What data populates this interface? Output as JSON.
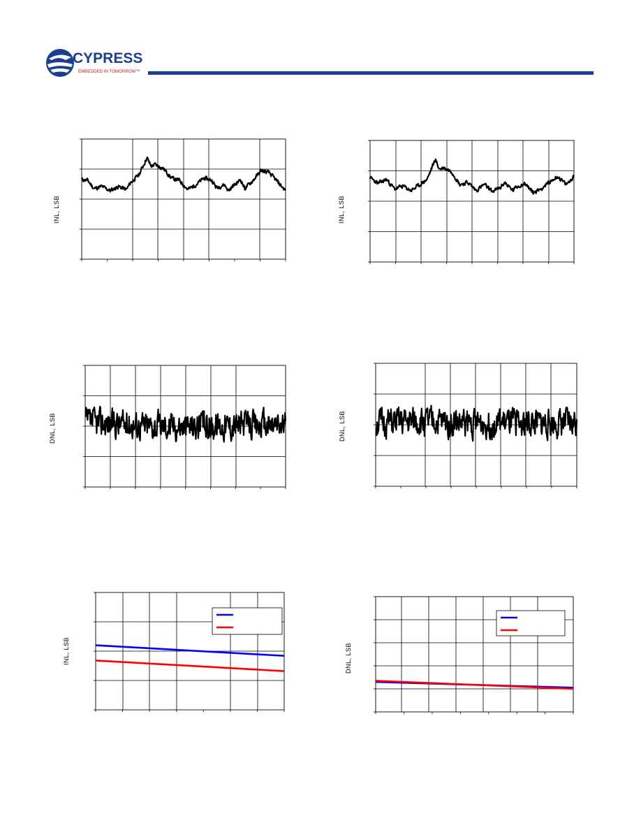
{
  "header": {
    "logo_text": "CYPRESS",
    "logo_tagline": "EMBEDDED IN TOMORROW™",
    "brand_color": "#1b3f8f"
  },
  "colors": {
    "trace": "#000000",
    "blue_series": "#0000ff",
    "red_series": "#ff0000",
    "grid": "#000000"
  },
  "chart_data": [
    {
      "type": "line",
      "position": "top-left",
      "ylabel": "INL, LSB",
      "xlabel": "",
      "title": "",
      "grid": true,
      "legend": null,
      "noise": {
        "seed": 11,
        "amp": 0.06
      },
      "series": [
        {
          "x": [
            0,
            0.03,
            0.06,
            0.1,
            0.14,
            0.18,
            0.22,
            0.24,
            0.28,
            0.32,
            0.34,
            0.36,
            0.4,
            0.44,
            0.48,
            0.52,
            0.56,
            0.6,
            0.64,
            0.66,
            0.7,
            0.72,
            0.74,
            0.78,
            0.8,
            0.84,
            0.88,
            0.92,
            0.96,
            1.0
          ],
          "y": [
            0.65,
            0.62,
            0.35,
            0.42,
            0.28,
            0.42,
            0.32,
            0.55,
            0.8,
            1.38,
            1.1,
            1.15,
            1.02,
            0.7,
            0.62,
            0.32,
            0.48,
            0.7,
            0.62,
            0.38,
            0.48,
            0.28,
            0.42,
            0.65,
            0.35,
            0.62,
            0.95,
            0.88,
            0.58,
            0.28
          ]
        }
      ]
    },
    {
      "type": "line",
      "position": "top-right",
      "ylabel": "INL, LSB",
      "xlabel": "",
      "title": "",
      "grid": true,
      "legend": null,
      "noise": {
        "seed": 23,
        "amp": 0.06
      },
      "series": [
        {
          "x": [
            0,
            0.04,
            0.08,
            0.12,
            0.16,
            0.2,
            0.24,
            0.28,
            0.32,
            0.34,
            0.36,
            0.4,
            0.44,
            0.48,
            0.52,
            0.56,
            0.6,
            0.64,
            0.66,
            0.7,
            0.72,
            0.76,
            0.8,
            0.84,
            0.88,
            0.92,
            0.96,
            0.98,
            1.0
          ],
          "y": [
            0.78,
            0.58,
            0.72,
            0.4,
            0.5,
            0.35,
            0.52,
            0.72,
            1.38,
            1.05,
            1.1,
            0.98,
            0.55,
            0.62,
            0.35,
            0.55,
            0.32,
            0.45,
            0.62,
            0.35,
            0.48,
            0.58,
            0.28,
            0.42,
            0.62,
            0.82,
            0.55,
            0.65,
            0.85
          ]
        }
      ]
    },
    {
      "type": "line",
      "position": "middle-left",
      "ylabel": "DNL, LSB",
      "xlabel": "",
      "title": "",
      "grid": true,
      "legend": null,
      "noise": {
        "seed": 37,
        "amp": 0.42
      },
      "series": [
        {
          "x": [
            0,
            0.25,
            0.5,
            0.75,
            1.0
          ],
          "y": [
            0.15,
            0.05,
            0.0,
            0.05,
            0.05
          ]
        }
      ]
    },
    {
      "type": "line",
      "position": "middle-right",
      "ylabel": "DNL, LSB",
      "xlabel": "",
      "title": "",
      "grid": true,
      "legend": null,
      "noise": {
        "seed": 51,
        "amp": 0.42
      },
      "series": [
        {
          "x": [
            0,
            0.25,
            0.5,
            0.75,
            1.0
          ],
          "y": [
            0.05,
            0.1,
            0.05,
            0.05,
            0.05
          ]
        }
      ]
    },
    {
      "type": "line",
      "position": "bottom-left",
      "ylabel": "INL, LSB",
      "xlabel": "",
      "title": "",
      "grid": true,
      "legend": "top-right",
      "series": [
        {
          "color": "#0000ff",
          "x": [
            0,
            1
          ],
          "y": [
            0.2,
            -0.16
          ]
        },
        {
          "color": "#ff0000",
          "x": [
            0,
            1
          ],
          "y": [
            -0.32,
            -0.68
          ]
        }
      ]
    },
    {
      "type": "line",
      "position": "bottom-right",
      "ylabel": "DNL, LSB",
      "xlabel": "",
      "title": "",
      "grid": true,
      "legend": "top-right",
      "series": [
        {
          "color": "#0000ff",
          "x": [
            0,
            1
          ],
          "y": [
            1.3,
            1.05
          ]
        },
        {
          "color": "#ff0000",
          "x": [
            0,
            1
          ],
          "y": [
            1.35,
            1.0
          ]
        }
      ]
    }
  ]
}
